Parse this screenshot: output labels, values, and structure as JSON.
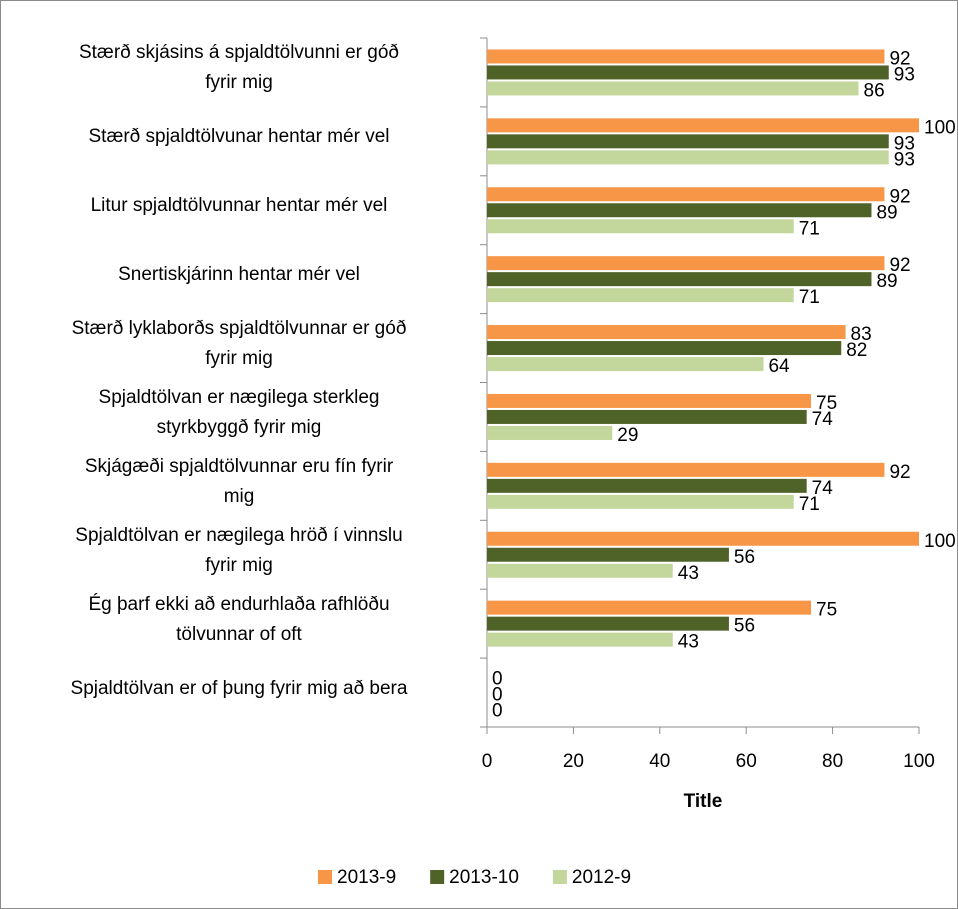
{
  "chart_data": {
    "type": "bar",
    "orientation": "horizontal",
    "x_label": "Title",
    "categories": [
      "Stærð skjásins á spjaldtölvunni er góð\nfyrir mig",
      "Stærð spjaldtölvunar hentar mér vel",
      "Litur spjaldtölvunnar hentar mér vel",
      "Snertiskjárinn hentar mér vel",
      "Stærð lyklaborðs spjaldtölvunnar er góð\nfyrir mig",
      "Spjaldtölvan er nægilega sterkleg\nstyrkbyggð fyrir mig",
      "Skjágæði spjaldtölvunnar eru fín fyrir\nmig",
      "Spjaldtölvan er nægilega hröð í vinnslu\nfyrir mig",
      "Ég þarf ekki að endurhlaða rafhlöðu\ntölvunnar of oft",
      "Spjaldtölvan er of þung fyrir mig að bera"
    ],
    "series": [
      {
        "name": "2013-9",
        "color": "#f79646",
        "values": [
          92,
          100,
          92,
          92,
          83,
          75,
          92,
          100,
          75,
          0
        ]
      },
      {
        "name": "2013-10",
        "color": "#4f6228",
        "values": [
          93,
          93,
          89,
          89,
          82,
          74,
          74,
          56,
          56,
          0
        ]
      },
      {
        "name": "2012-9",
        "color": "#c3d69b",
        "values": [
          86,
          93,
          71,
          71,
          64,
          29,
          71,
          43,
          43,
          0
        ]
      }
    ],
    "xlim": [
      0,
      100
    ],
    "xticks": [
      0,
      20,
      40,
      60,
      80,
      100
    ],
    "legend": "bottom",
    "grid": false
  }
}
